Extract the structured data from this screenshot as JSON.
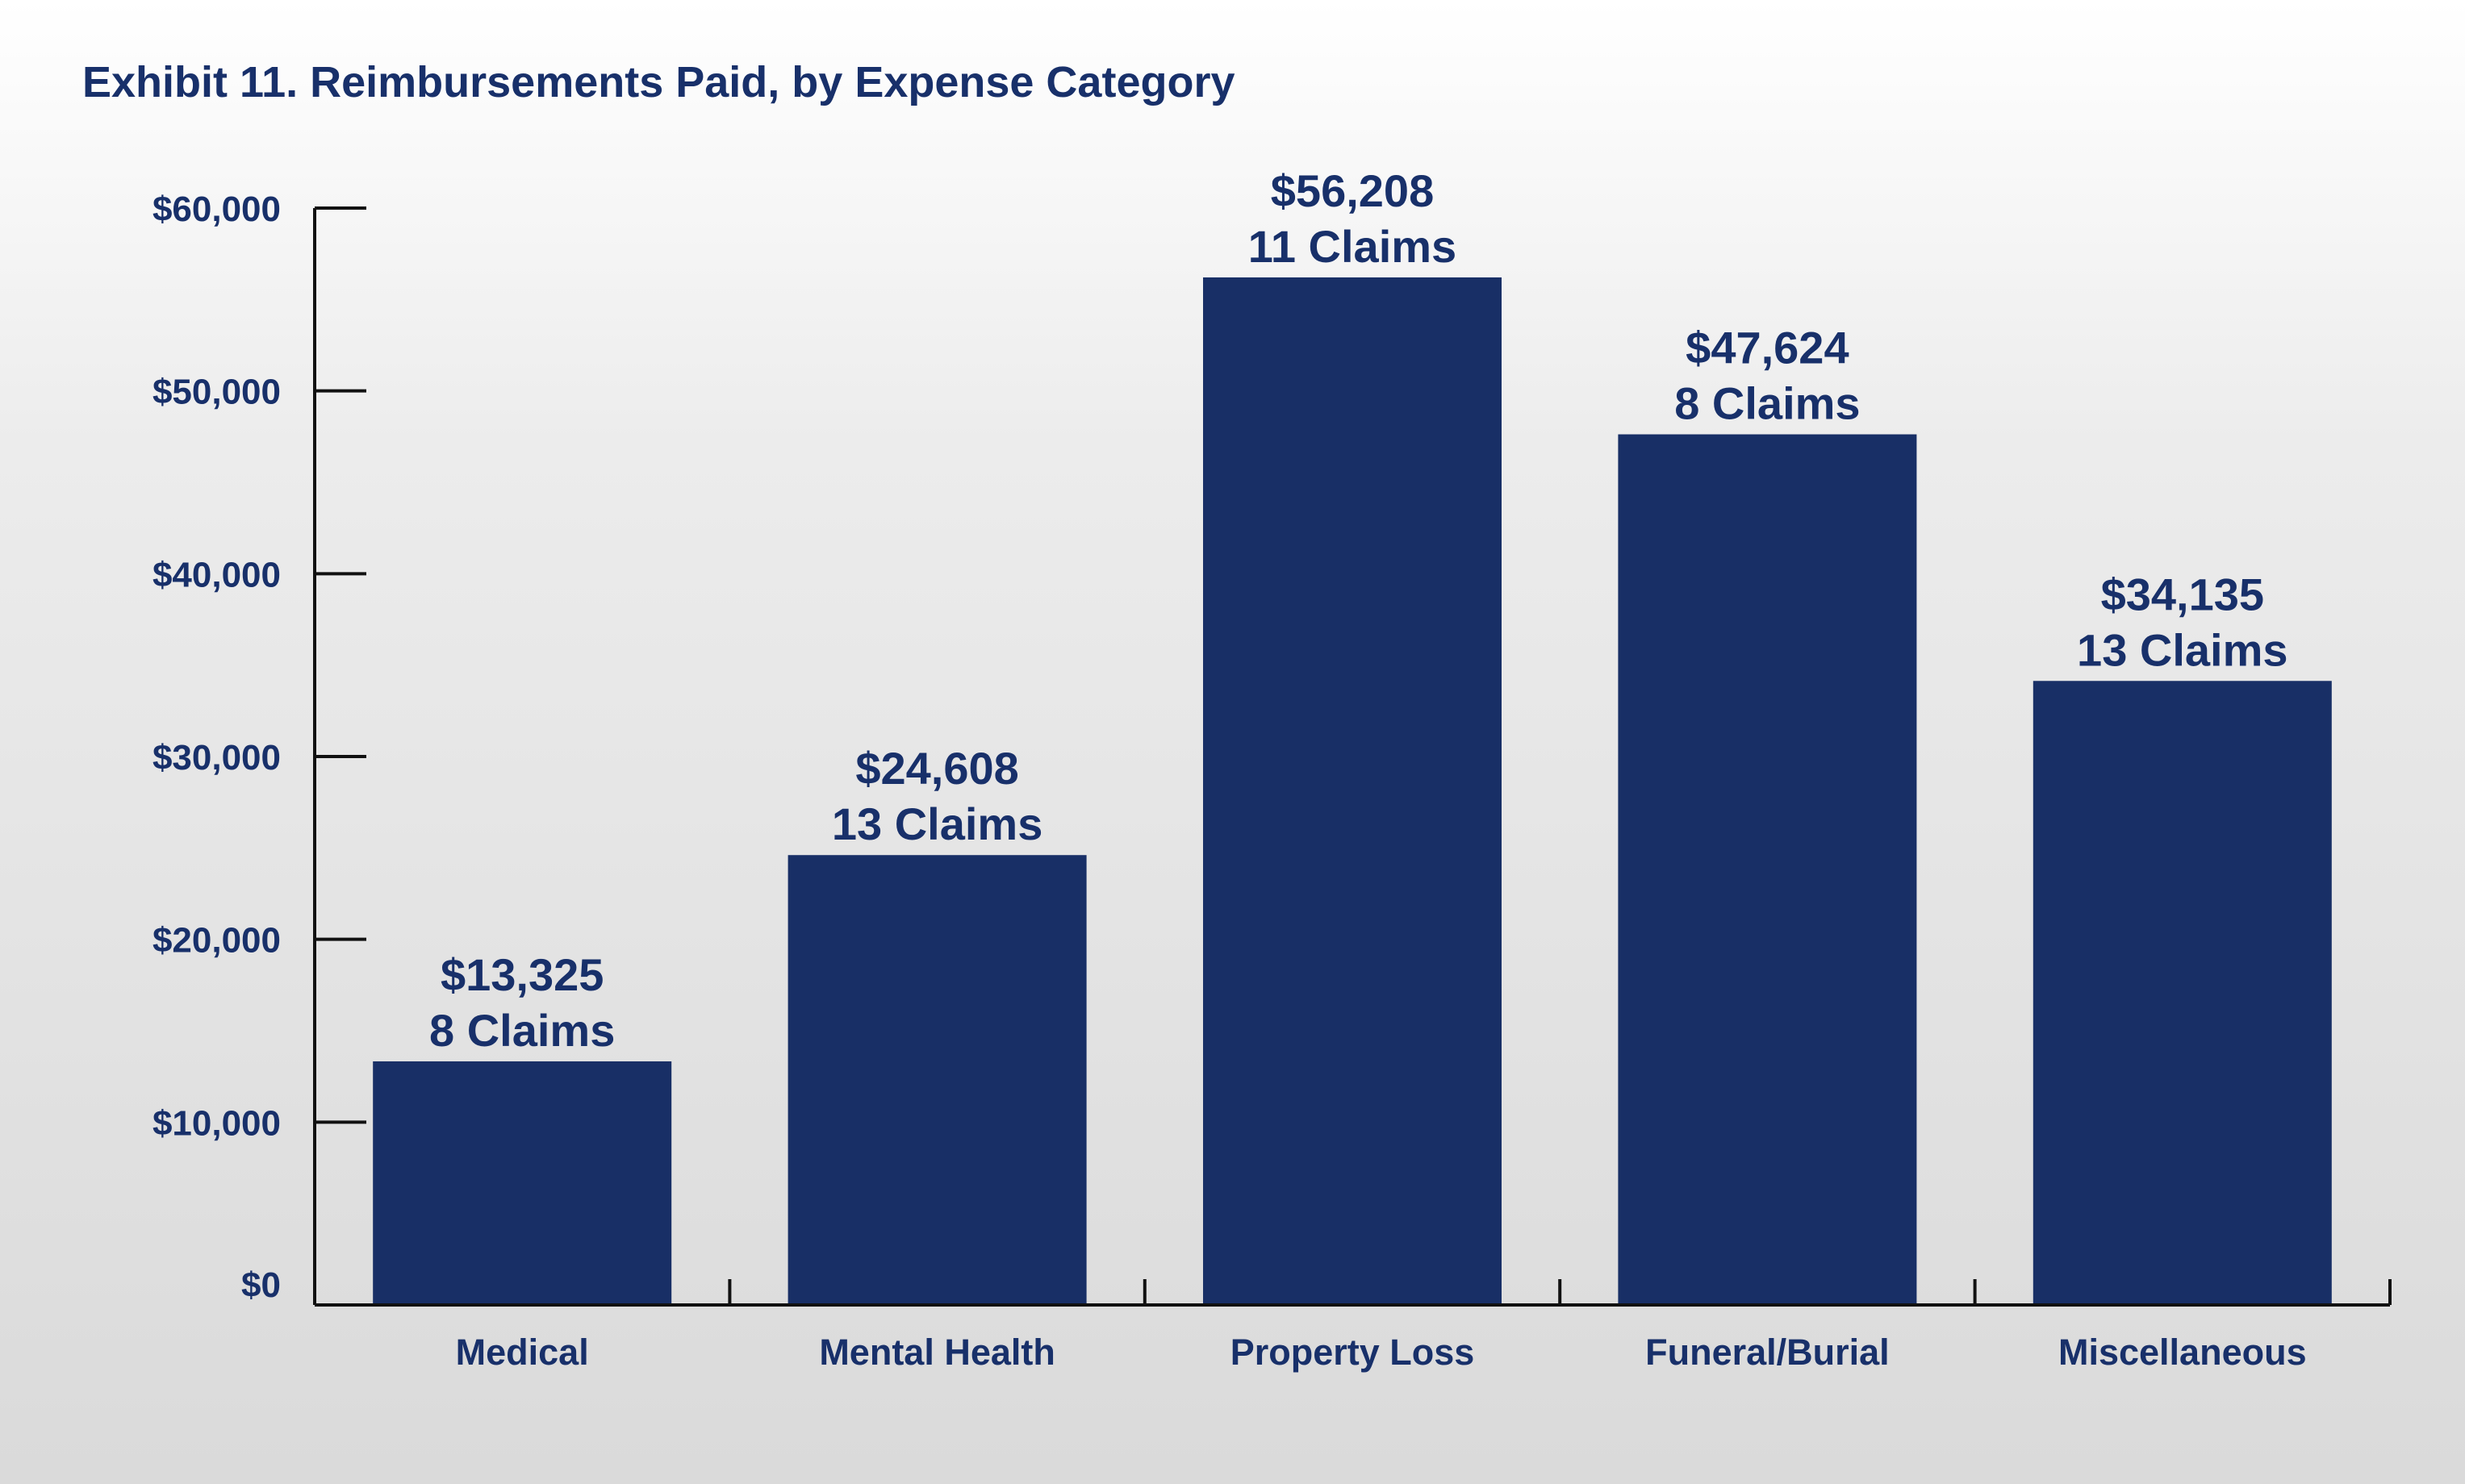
{
  "chart_data": {
    "type": "bar",
    "title": "Exhibit 11. Reimbursements Paid, by Expense Category",
    "xlabel": "",
    "ylabel": "",
    "categories": [
      "Medical",
      "Mental Health",
      "Property Loss",
      "Funeral/Burial",
      "Miscellaneous"
    ],
    "values": [
      13325,
      24608,
      56208,
      47624,
      34135
    ],
    "value_labels": [
      "$13,325",
      "$24,608",
      "$56,208",
      "$47,624",
      "$34,135"
    ],
    "claims_labels": [
      "8 Claims",
      "13 Claims",
      "11 Claims",
      "8 Claims",
      "13 Claims"
    ],
    "ylim": [
      0,
      60000
    ],
    "yticks": [
      0,
      10000,
      20000,
      30000,
      40000,
      50000,
      60000
    ],
    "ytick_labels": [
      "$0",
      "$10,000",
      "$20,000",
      "$30,000",
      "$40,000",
      "$50,000",
      "$60,000"
    ],
    "grid": false,
    "legend": "none",
    "colors": {
      "bar": "#182f66",
      "text": "#18306a",
      "axis": "#111111"
    }
  }
}
